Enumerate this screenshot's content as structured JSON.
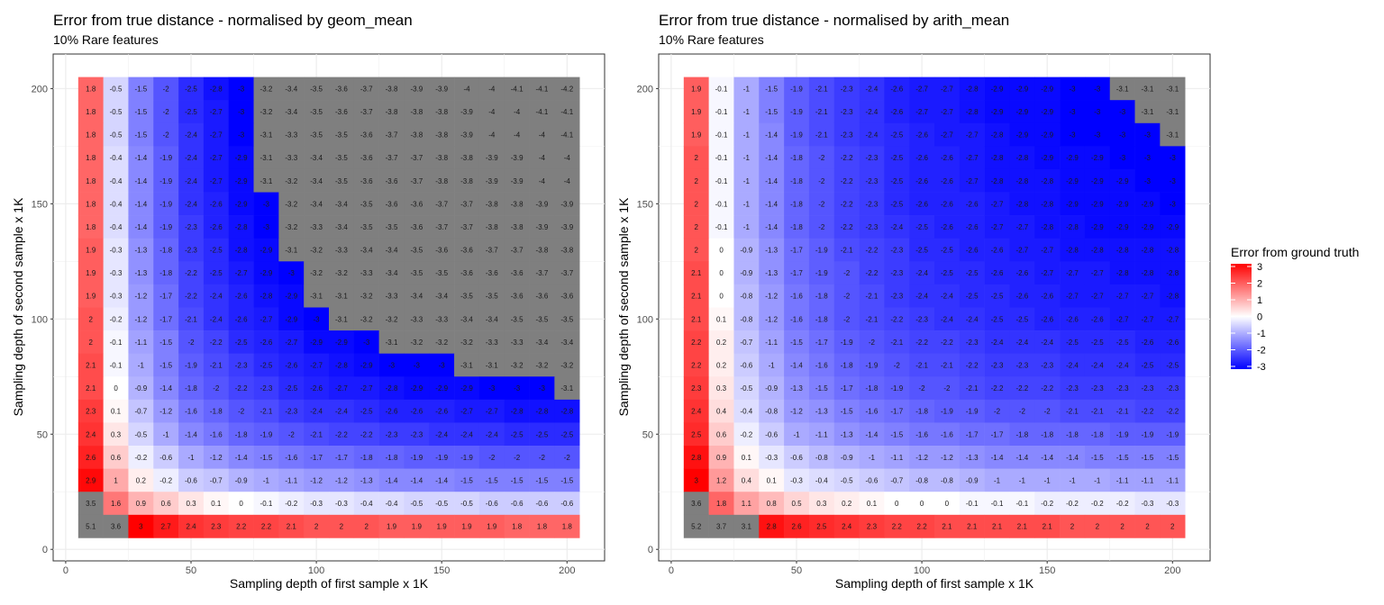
{
  "chart_data": [
    {
      "type": "heatmap",
      "title": "Error from true distance - normalised by geom_mean",
      "subtitle": "10% Rare features",
      "xlabel": "Sampling depth of first sample x 1K",
      "ylabel": "Sampling depth of second sample x 1K",
      "x": [
        10,
        20,
        30,
        40,
        50,
        60,
        70,
        80,
        90,
        100,
        110,
        120,
        130,
        140,
        150,
        160,
        170,
        180,
        190,
        200
      ],
      "y": [
        200,
        190,
        180,
        170,
        160,
        150,
        140,
        130,
        120,
        110,
        100,
        90,
        80,
        70,
        60,
        50,
        40,
        30,
        20,
        10
      ],
      "xlim": [
        -5,
        215
      ],
      "ylim": [
        -5,
        215
      ],
      "xticks": [
        0,
        50,
        100,
        150,
        200
      ],
      "yticks": [
        0,
        50,
        100,
        150,
        200
      ],
      "values": [
        [
          1.8,
          -0.5,
          -1.5,
          -2,
          -2.5,
          -2.8,
          -3,
          -3.2,
          -3.4,
          -3.5,
          -3.6,
          -3.7,
          -3.8,
          -3.9,
          -3.9,
          -4,
          -4,
          -4.1,
          -4.1,
          -4.2
        ],
        [
          1.8,
          -0.5,
          -1.5,
          -2,
          -2.5,
          -2.7,
          -3,
          -3.2,
          -3.4,
          -3.5,
          -3.6,
          -3.7,
          -3.8,
          -3.8,
          -3.8,
          -3.9,
          -4,
          -4,
          -4.1,
          -4.1
        ],
        [
          1.8,
          -0.5,
          -1.5,
          -2,
          -2.4,
          -2.7,
          -3,
          -3.1,
          -3.3,
          -3.5,
          -3.5,
          -3.6,
          -3.7,
          -3.8,
          -3.8,
          -3.9,
          -4,
          -4,
          -4,
          -4.1
        ],
        [
          1.8,
          -0.4,
          -1.4,
          -1.9,
          -2.4,
          -2.7,
          -2.9,
          -3.1,
          -3.3,
          -3.4,
          -3.5,
          -3.6,
          -3.7,
          -3.7,
          -3.8,
          -3.8,
          -3.9,
          -3.9,
          -4,
          -4
        ],
        [
          1.8,
          -0.4,
          -1.4,
          -1.9,
          -2.4,
          -2.7,
          -2.9,
          -3.1,
          -3.2,
          -3.4,
          -3.5,
          -3.6,
          -3.6,
          -3.7,
          -3.8,
          -3.8,
          -3.9,
          -3.9,
          -4,
          -4
        ],
        [
          1.8,
          -0.4,
          -1.4,
          -1.9,
          -2.4,
          -2.6,
          -2.9,
          -3,
          -3.2,
          -3.4,
          -3.4,
          -3.5,
          -3.6,
          -3.6,
          -3.7,
          -3.7,
          -3.8,
          -3.8,
          -3.9,
          -3.9
        ],
        [
          1.8,
          -0.4,
          -1.4,
          -1.9,
          -2.3,
          -2.6,
          -2.8,
          -3,
          -3.2,
          -3.3,
          -3.4,
          -3.5,
          -3.5,
          -3.6,
          -3.7,
          -3.7,
          -3.8,
          -3.8,
          -3.9,
          -3.9
        ],
        [
          1.9,
          -0.3,
          -1.3,
          -1.8,
          -2.3,
          -2.5,
          -2.8,
          -2.9,
          -3.1,
          -3.2,
          -3.3,
          -3.4,
          -3.4,
          -3.5,
          -3.6,
          -3.6,
          -3.7,
          -3.7,
          -3.8,
          -3.8
        ],
        [
          1.9,
          -0.3,
          -1.3,
          -1.8,
          -2.2,
          -2.5,
          -2.7,
          -2.9,
          -3,
          -3.2,
          -3.2,
          -3.3,
          -3.4,
          -3.5,
          -3.5,
          -3.6,
          -3.6,
          -3.6,
          -3.7,
          -3.7
        ],
        [
          1.9,
          -0.3,
          -1.2,
          -1.7,
          -2.2,
          -2.4,
          -2.6,
          -2.8,
          -2.9,
          -3.1,
          -3.1,
          -3.2,
          -3.3,
          -3.4,
          -3.4,
          -3.5,
          -3.5,
          -3.6,
          -3.6,
          -3.6
        ],
        [
          2,
          -0.2,
          -1.2,
          -1.7,
          -2.1,
          -2.4,
          -2.6,
          -2.7,
          -2.9,
          -3,
          -3.1,
          -3.2,
          -3.2,
          -3.3,
          -3.3,
          -3.4,
          -3.4,
          -3.5,
          -3.5,
          -3.5
        ],
        [
          2,
          -0.1,
          -1.1,
          -1.5,
          -2,
          -2.2,
          -2.5,
          -2.6,
          -2.7,
          -2.9,
          -2.9,
          -3,
          -3.1,
          -3.2,
          -3.2,
          -3.2,
          -3.3,
          -3.3,
          -3.4,
          -3.4
        ],
        [
          2.1,
          -0.1,
          -1,
          -1.5,
          -1.9,
          -2.1,
          -2.3,
          -2.5,
          -2.6,
          -2.7,
          -2.8,
          -2.9,
          -3,
          -3,
          -3,
          -3.1,
          -3.1,
          -3.2,
          -3.2,
          -3.2
        ],
        [
          2.1,
          0,
          -0.9,
          -1.4,
          -1.8,
          -2,
          -2.2,
          -2.3,
          -2.5,
          -2.6,
          -2.7,
          -2.7,
          -2.8,
          -2.9,
          -2.9,
          -2.9,
          -3,
          -3,
          -3,
          -3.1
        ],
        [
          2.3,
          0.1,
          -0.7,
          -1.2,
          -1.6,
          -1.8,
          -2,
          -2.1,
          -2.3,
          -2.4,
          -2.4,
          -2.5,
          -2.6,
          -2.6,
          -2.6,
          -2.7,
          -2.7,
          -2.8,
          -2.8,
          -2.8
        ],
        [
          2.4,
          0.3,
          -0.5,
          -1,
          -1.4,
          -1.6,
          -1.8,
          -1.9,
          -2,
          -2.1,
          -2.2,
          -2.2,
          -2.3,
          -2.3,
          -2.4,
          -2.4,
          -2.4,
          -2.5,
          -2.5,
          -2.5
        ],
        [
          2.6,
          0.6,
          -0.2,
          -0.6,
          -1,
          -1.2,
          -1.4,
          -1.5,
          -1.6,
          -1.7,
          -1.7,
          -1.8,
          -1.8,
          -1.9,
          -1.9,
          -1.9,
          -2,
          -2,
          -2,
          -2
        ],
        [
          2.9,
          1,
          0.2,
          -0.2,
          -0.6,
          -0.7,
          -0.9,
          -1,
          -1.1,
          -1.2,
          -1.2,
          -1.3,
          -1.4,
          -1.4,
          -1.4,
          -1.5,
          -1.5,
          -1.5,
          -1.5,
          -1.5
        ],
        [
          3.5,
          1.6,
          0.9,
          0.6,
          0.3,
          0.1,
          0,
          -0.1,
          -0.2,
          -0.3,
          -0.3,
          -0.4,
          -0.4,
          -0.5,
          -0.5,
          -0.5,
          -0.6,
          -0.6,
          -0.6,
          -0.6
        ],
        [
          5.1,
          3.6,
          3,
          2.7,
          2.4,
          2.3,
          2.2,
          2.2,
          2.1,
          2,
          2,
          2,
          1.9,
          1.9,
          1.9,
          1.9,
          1.9,
          1.8,
          1.8,
          1.8
        ]
      ]
    },
    {
      "type": "heatmap",
      "title": "Error from true distance - normalised by arith_mean",
      "subtitle": "10% Rare features",
      "xlabel": "Sampling depth of first sample x 1K",
      "ylabel": "Sampling depth of second sample x 1K",
      "x": [
        10,
        20,
        30,
        40,
        50,
        60,
        70,
        80,
        90,
        100,
        110,
        120,
        130,
        140,
        150,
        160,
        170,
        180,
        190,
        200
      ],
      "y": [
        200,
        190,
        180,
        170,
        160,
        150,
        140,
        130,
        120,
        110,
        100,
        90,
        80,
        70,
        60,
        50,
        40,
        30,
        20,
        10
      ],
      "xlim": [
        -5,
        215
      ],
      "ylim": [
        -5,
        215
      ],
      "xticks": [
        0,
        50,
        100,
        150,
        200
      ],
      "yticks": [
        0,
        50,
        100,
        150,
        200
      ],
      "values": [
        [
          1.9,
          -0.1,
          -1,
          -1.5,
          -1.9,
          -2.1,
          -2.3,
          -2.4,
          -2.6,
          -2.7,
          -2.7,
          -2.8,
          -2.9,
          -2.9,
          -2.9,
          -3,
          -3,
          -3.1,
          -3.1,
          -3.1
        ],
        [
          1.9,
          -0.1,
          -1,
          -1.5,
          -1.9,
          -2.1,
          -2.3,
          -2.4,
          -2.6,
          -2.7,
          -2.7,
          -2.8,
          -2.9,
          -2.9,
          -2.9,
          -3,
          -3,
          -3,
          -3.1,
          -3.1
        ],
        [
          1.9,
          -0.1,
          -1,
          -1.4,
          -1.9,
          -2.1,
          -2.3,
          -2.4,
          -2.5,
          -2.6,
          -2.7,
          -2.7,
          -2.8,
          -2.9,
          -2.9,
          -3,
          -3,
          -3,
          -3,
          -3.1
        ],
        [
          2,
          -0.1,
          -1,
          -1.4,
          -1.8,
          -2,
          -2.2,
          -2.3,
          -2.5,
          -2.6,
          -2.6,
          -2.7,
          -2.8,
          -2.8,
          -2.9,
          -2.9,
          -2.9,
          -3,
          -3,
          -3
        ],
        [
          2,
          -0.1,
          -1,
          -1.4,
          -1.8,
          -2,
          -2.2,
          -2.3,
          -2.5,
          -2.6,
          -2.6,
          -2.7,
          -2.8,
          -2.8,
          -2.8,
          -2.9,
          -2.9,
          -2.9,
          -3,
          -3
        ],
        [
          2,
          -0.1,
          -1,
          -1.4,
          -1.8,
          -2,
          -2.2,
          -2.3,
          -2.5,
          -2.6,
          -2.6,
          -2.6,
          -2.7,
          -2.8,
          -2.8,
          -2.9,
          -2.9,
          -2.9,
          -2.9,
          -3
        ],
        [
          2,
          -0.1,
          -1,
          -1.4,
          -1.8,
          -2,
          -2.2,
          -2.3,
          -2.4,
          -2.5,
          -2.6,
          -2.6,
          -2.7,
          -2.7,
          -2.8,
          -2.8,
          -2.9,
          -2.9,
          -2.9,
          -2.9
        ],
        [
          2,
          0,
          -0.9,
          -1.3,
          -1.7,
          -1.9,
          -2.1,
          -2.2,
          -2.3,
          -2.5,
          -2.5,
          -2.6,
          -2.6,
          -2.7,
          -2.7,
          -2.8,
          -2.8,
          -2.8,
          -2.8,
          -2.8
        ],
        [
          2.1,
          0,
          -0.9,
          -1.3,
          -1.7,
          -1.9,
          -2,
          -2.2,
          -2.3,
          -2.4,
          -2.5,
          -2.5,
          -2.6,
          -2.6,
          -2.7,
          -2.7,
          -2.7,
          -2.8,
          -2.8,
          -2.8
        ],
        [
          2.1,
          0,
          -0.8,
          -1.2,
          -1.6,
          -1.8,
          -2,
          -2.1,
          -2.3,
          -2.4,
          -2.4,
          -2.5,
          -2.5,
          -2.6,
          -2.6,
          -2.7,
          -2.7,
          -2.7,
          -2.7,
          -2.8
        ],
        [
          2.1,
          0.1,
          -0.8,
          -1.2,
          -1.6,
          -1.8,
          -2,
          -2.1,
          -2.2,
          -2.3,
          -2.4,
          -2.4,
          -2.5,
          -2.5,
          -2.6,
          -2.6,
          -2.6,
          -2.7,
          -2.7,
          -2.7
        ],
        [
          2.2,
          0.2,
          -0.7,
          -1.1,
          -1.5,
          -1.7,
          -1.9,
          -2,
          -2.1,
          -2.2,
          -2.2,
          -2.3,
          -2.4,
          -2.4,
          -2.4,
          -2.5,
          -2.5,
          -2.5,
          -2.6,
          -2.6
        ],
        [
          2.2,
          0.2,
          -0.6,
          -1,
          -1.4,
          -1.6,
          -1.8,
          -1.9,
          -2,
          -2.1,
          -2.1,
          -2.2,
          -2.3,
          -2.3,
          -2.3,
          -2.4,
          -2.4,
          -2.4,
          -2.5,
          -2.5
        ],
        [
          2.3,
          0.3,
          -0.5,
          -0.9,
          -1.3,
          -1.5,
          -1.7,
          -1.8,
          -1.9,
          -2,
          -2,
          -2.1,
          -2.2,
          -2.2,
          -2.2,
          -2.3,
          -2.3,
          -2.3,
          -2.3,
          -2.3
        ],
        [
          2.4,
          0.4,
          -0.4,
          -0.8,
          -1.2,
          -1.3,
          -1.5,
          -1.6,
          -1.7,
          -1.8,
          -1.9,
          -1.9,
          -2,
          -2,
          -2,
          -2.1,
          -2.1,
          -2.1,
          -2.2,
          -2.2
        ],
        [
          2.5,
          0.6,
          -0.2,
          -0.6,
          -1,
          -1.1,
          -1.3,
          -1.4,
          -1.5,
          -1.6,
          -1.6,
          -1.7,
          -1.7,
          -1.8,
          -1.8,
          -1.8,
          -1.8,
          -1.9,
          -1.9,
          -1.9
        ],
        [
          2.8,
          0.9,
          0.1,
          -0.3,
          -0.6,
          -0.8,
          -0.9,
          -1,
          -1.1,
          -1.2,
          -1.2,
          -1.3,
          -1.4,
          -1.4,
          -1.4,
          -1.4,
          -1.5,
          -1.5,
          -1.5,
          -1.5
        ],
        [
          3,
          1.2,
          0.4,
          0.1,
          -0.3,
          -0.4,
          -0.5,
          -0.6,
          -0.7,
          -0.8,
          -0.8,
          -0.9,
          -1,
          -1,
          -1,
          -1,
          -1,
          -1.1,
          -1.1,
          -1.1
        ],
        [
          3.6,
          1.8,
          1.1,
          0.8,
          0.5,
          0.3,
          0.2,
          0.1,
          0,
          0,
          0,
          -0.1,
          -0.1,
          -0.1,
          -0.2,
          -0.2,
          -0.2,
          -0.2,
          -0.3,
          -0.3
        ],
        [
          5.2,
          3.7,
          3.1,
          2.8,
          2.6,
          2.5,
          2.4,
          2.3,
          2.2,
          2.2,
          2.1,
          2.1,
          2.1,
          2.1,
          2.1,
          2,
          2,
          2,
          2,
          2
        ]
      ]
    }
  ],
  "legend": {
    "title": "Error from ground truth",
    "labels": [
      "3",
      "2",
      "1",
      "0",
      "-1",
      "-2",
      "-3"
    ],
    "limits": [
      -3,
      3
    ],
    "colors": {
      "low": "#0000ff",
      "mid": "#ffffff",
      "high": "#ff0000",
      "na": "#7f7f7f"
    }
  }
}
